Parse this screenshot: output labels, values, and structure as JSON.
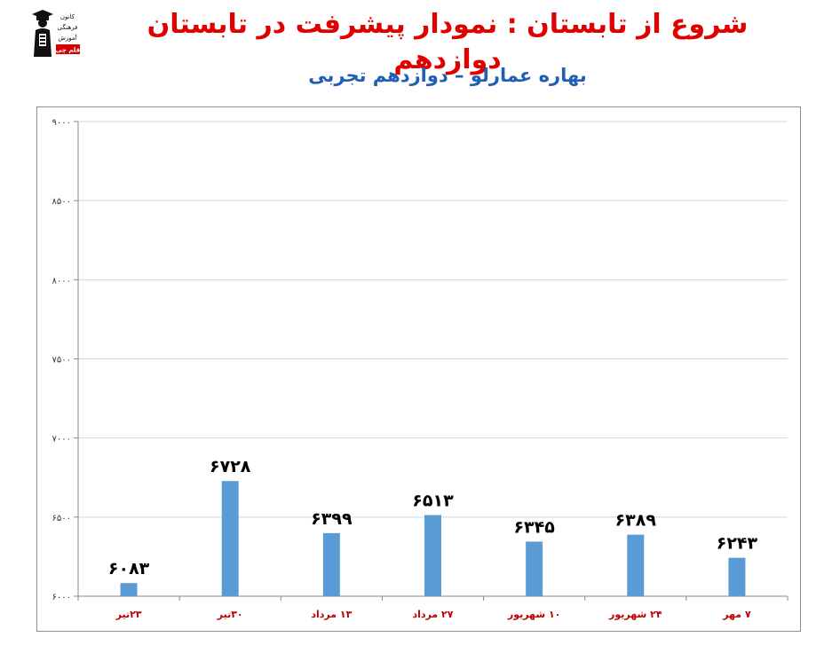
{
  "page": {
    "title": "شروع از تابستان : نمودار پیشرفت در تابستان دوازدهم",
    "subtitle": "بهاره عمارلو – دوازدهم تجربی",
    "logo_text": [
      "کانون",
      "فرهنگی",
      "آموزش",
      "قلم چی"
    ]
  },
  "chart_data": {
    "type": "bar",
    "categories": [
      "۲۳تیر",
      "۳۰تیر",
      "۱۳ مرداد",
      "۲۷ مرداد",
      "۱۰ شهریور",
      "۲۴ شهریور",
      "۷ مهر"
    ],
    "values": [
      6083,
      6728,
      6399,
      6513,
      6345,
      6389,
      6243
    ],
    "value_labels": [
      "۶۰۸۳",
      "۶۷۲۸",
      "۶۳۹۹",
      "۶۵۱۳",
      "۶۳۴۵",
      "۶۳۸۹",
      "۶۲۴۳"
    ],
    "ylim": [
      6000,
      9000
    ],
    "y_ticks": [
      6000,
      6500,
      7000,
      7500,
      8000,
      8500,
      9000
    ],
    "y_tick_labels": [
      "۶۰۰۰",
      "۶۵۰۰",
      "۷۰۰۰",
      "۷۵۰۰",
      "۸۰۰۰",
      "۸۵۰۰",
      "۹۰۰۰"
    ],
    "bar_color": "#5b9bd5",
    "grid": true,
    "grid_color": "#c6d9ea",
    "category_label_color": "#c00000"
  }
}
